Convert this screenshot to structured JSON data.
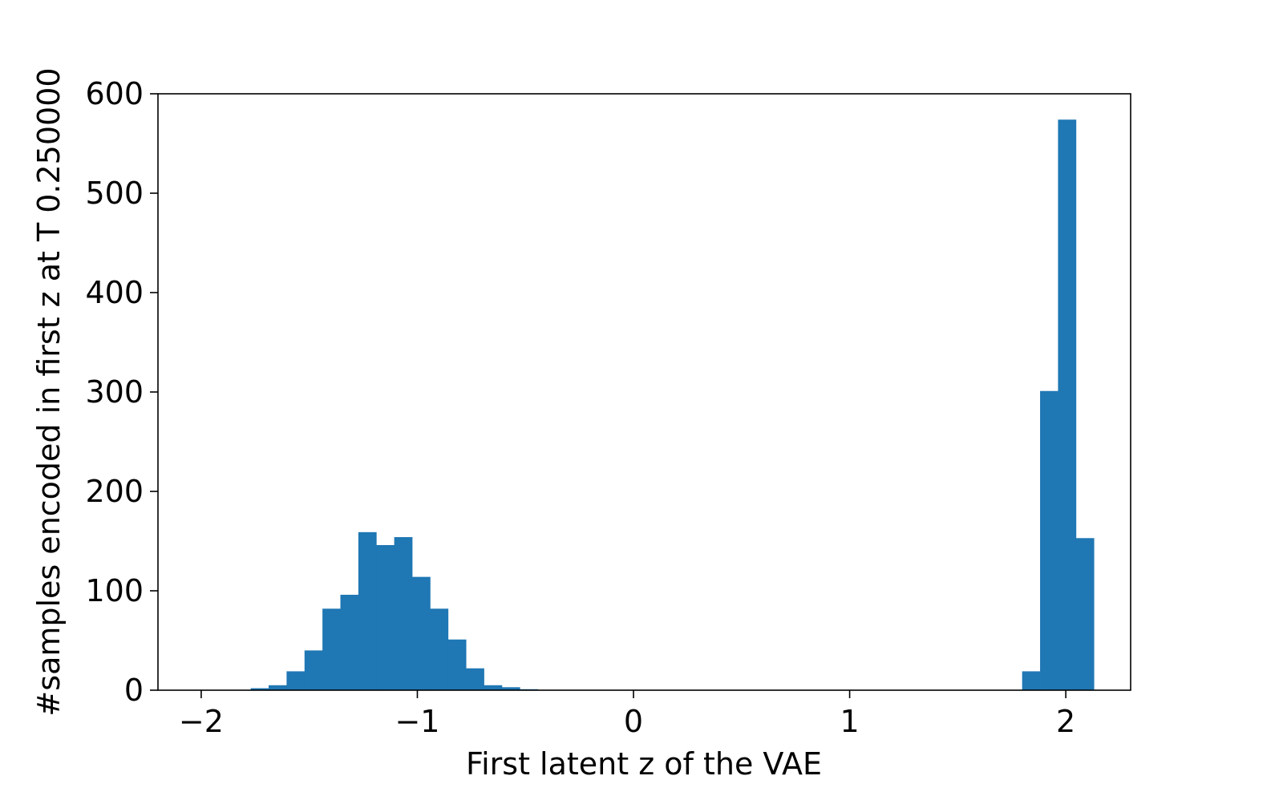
{
  "chart_data": {
    "type": "bar",
    "title": "",
    "xlabel": "First latent z of the VAE",
    "ylabel": "#samples encoded in first z at T 0.250000",
    "xlim": [
      -2.2,
      2.3
    ],
    "ylim": [
      0,
      600
    ],
    "xticks": [
      -2,
      -1,
      0,
      1,
      2
    ],
    "xtick_labels": [
      "−2",
      "−1",
      "0",
      "1",
      "2"
    ],
    "yticks": [
      0,
      100,
      200,
      300,
      400,
      500,
      600
    ],
    "ytick_labels": [
      "0",
      "100",
      "200",
      "300",
      "400",
      "500",
      "600"
    ],
    "bin_width": 0.083,
    "bin_starts": [
      -2.02,
      -1.937,
      -1.854,
      -1.771,
      -1.688,
      -1.605,
      -1.522,
      -1.439,
      -1.356,
      -1.273,
      -1.19,
      -1.107,
      -1.024,
      -0.941,
      -0.858,
      -0.775,
      -0.692,
      -0.609,
      -0.526,
      -0.443,
      -0.36,
      -0.277,
      -0.194,
      -0.111,
      -0.028,
      0.055,
      0.138,
      0.221,
      0.304,
      0.387,
      0.47,
      0.553,
      0.636,
      0.719,
      0.802,
      0.885,
      0.968,
      1.051,
      1.134,
      1.217,
      1.3,
      1.383,
      1.466,
      1.549,
      1.632,
      1.715,
      1.798,
      1.881,
      1.964,
      2.047
    ],
    "values": [
      0,
      0,
      0,
      2,
      5,
      19,
      40,
      82,
      96,
      159,
      146,
      154,
      114,
      82,
      51,
      22,
      5,
      3,
      1,
      0,
      0,
      0,
      0,
      0,
      0,
      0,
      0,
      0,
      0,
      0,
      0,
      0,
      0,
      0,
      0,
      0,
      0,
      0,
      0,
      0,
      0,
      0,
      0,
      0,
      0,
      0,
      19,
      301,
      574,
      153
    ],
    "bar_color": "#1f77b4",
    "grid": false,
    "legend": "none"
  }
}
